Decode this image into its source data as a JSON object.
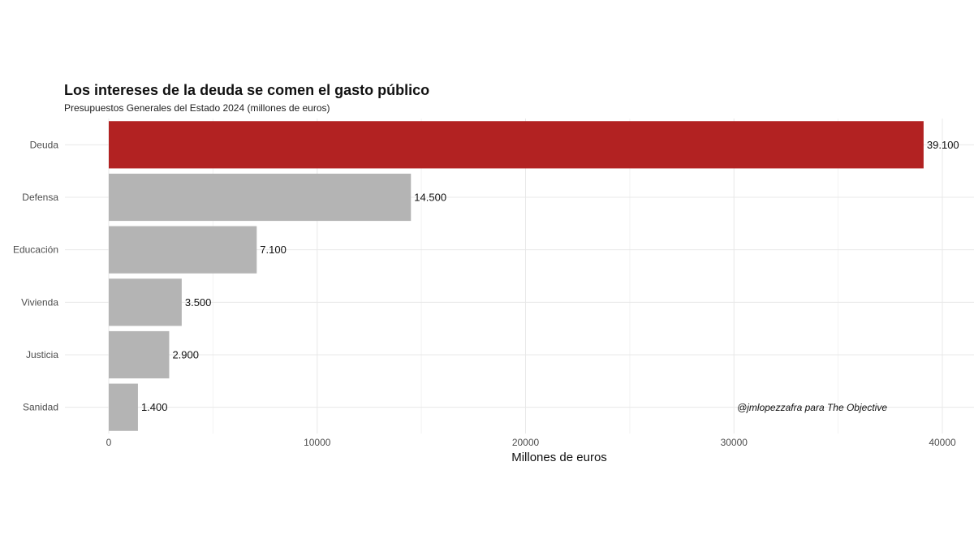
{
  "chart_data": {
    "type": "bar",
    "orientation": "horizontal",
    "title": "Los intereses de la deuda se comen el gasto público",
    "subtitle": "Presupuestos Generales del Estado 2024 (millones de euros)",
    "xlabel": "Millones de euros",
    "ylabel": "",
    "categories": [
      "Deuda",
      "Defensa",
      "Educación",
      "Vivienda",
      "Justicia",
      "Sanidad"
    ],
    "values": [
      39100,
      14500,
      7100,
      3500,
      2900,
      1400
    ],
    "value_labels": [
      "39.100",
      "14.500",
      "7.100",
      "3.500",
      "2.900",
      "1.400"
    ],
    "xlim": [
      0,
      41000
    ],
    "x_ticks": [
      0,
      10000,
      20000,
      30000,
      40000
    ],
    "x_tick_labels": [
      "0",
      "10000",
      "20000",
      "30000",
      "40000"
    ],
    "grid": true,
    "caption": "@jmlopezzafra para The Objective",
    "colors": {
      "highlight": "#b22222",
      "default": "#b4b4b4"
    },
    "highlight_category": "Deuda"
  }
}
